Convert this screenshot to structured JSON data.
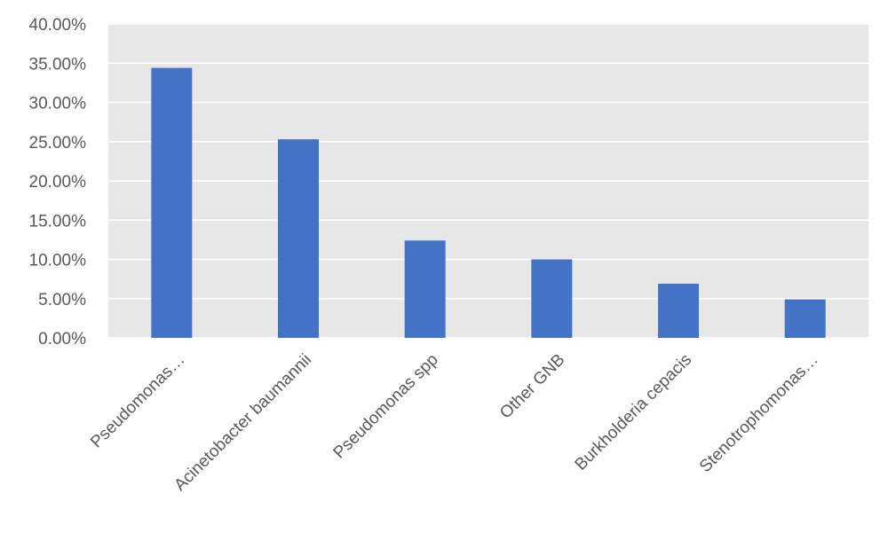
{
  "chart_data": {
    "type": "bar",
    "title": "",
    "xlabel": "",
    "ylabel": "",
    "categories": [
      "Pseudomonas…",
      "Acinetobacter baumannii",
      "Pseudomonas spp",
      "Other GNB",
      "Burkholderia cepacis",
      "Stenotrophomonas…"
    ],
    "values": [
      34.4,
      25.3,
      12.4,
      10.0,
      6.9,
      4.9
    ],
    "ylim": [
      0,
      40
    ],
    "yticks": [
      "0.00%",
      "5.00%",
      "10.00%",
      "15.00%",
      "20.00%",
      "25.00%",
      "30.00%",
      "35.00%",
      "40.00%"
    ],
    "grid": true,
    "legend": "none",
    "colors": {
      "bar": "#4472c4",
      "plot_background": "#e7e7e7",
      "gridline": "#ffffff",
      "text": "#595959"
    }
  }
}
